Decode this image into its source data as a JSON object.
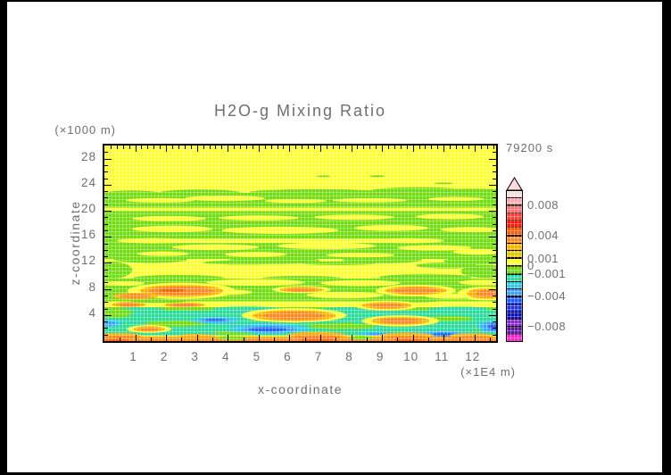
{
  "frame": {
    "background": "#000000",
    "canvas": "#ffffff"
  },
  "title": "H2O-g Mixing Ratio",
  "annotations": {
    "time": "79200 s",
    "z_axis_unit": "(×1000 m)",
    "x_axis_unit": "(×1E4 m)"
  },
  "chart_data": {
    "type": "filled_contour",
    "title": "H2O-g Mixing Ratio",
    "time": "79200 s",
    "xlabel": "x-coordinate",
    "ylabel": "z-coordinate",
    "x_unit": "(×1E4 m)",
    "z_unit": "(×1000 m)",
    "x_range": [
      0,
      12.7
    ],
    "z_range": [
      0,
      30
    ],
    "x_major_step": 1,
    "x_minor_step_top": 0.2,
    "x_minor_step_bottom": 0.5,
    "z_major_step": 4,
    "z_minor_step": 1,
    "x_tick_values": [
      1,
      2,
      3,
      4,
      5,
      6,
      7,
      8,
      9,
      10,
      11,
      12
    ],
    "x_tick_labels": [
      "1",
      "2",
      "3",
      "4",
      "5",
      "6",
      "7",
      "8",
      "9",
      "10",
      "11",
      "12"
    ],
    "z_tick_values": [
      4,
      8,
      12,
      16,
      20,
      24,
      28
    ],
    "z_tick_labels": [
      "4",
      "8",
      "12",
      "16",
      "20",
      "24",
      "28"
    ],
    "grid_mesh": true,
    "colorbar": {
      "min": -0.01,
      "max": 0.01,
      "step": 0.001,
      "colors_top_to_bottom": [
        "#FFDCDC",
        "#FFAAAA",
        "#FF7474",
        "#FF3A3A",
        "#FF1605",
        "#FF5A00",
        "#FC8620",
        "#FFAE00",
        "#E0CC00",
        "#FFFF2E",
        "#70DC10",
        "#29DA9B",
        "#2CC8E4",
        "#3D9EFF",
        "#1E5BFF",
        "#2030E8",
        "#0D0DBB",
        "#8A24CC",
        "#5F14A4",
        "#FF22CC"
      ],
      "labels": [
        {
          "value": 0.008,
          "text": "0.008"
        },
        {
          "value": 0.004,
          "text": "0.004"
        },
        {
          "value": 0.001,
          "text": "0.001"
        },
        {
          "value": 0,
          "text": "0"
        },
        {
          "value": -0.001,
          "text": "−0.001"
        },
        {
          "value": -0.004,
          "text": "−0.004"
        },
        {
          "value": -0.008,
          "text": "−0.008"
        }
      ]
    },
    "palette": {
      "yellow": "#FFFF2E",
      "green": "#70DC10",
      "teal": "#29DA9B",
      "cyan": "#2CC8E4",
      "sky": "#3D9EFF",
      "blue": "#1E5BFF",
      "dkyellow": "#E0CC00",
      "amber": "#FFAE00",
      "orange": "#FC8620",
      "redor": "#FF5A00"
    },
    "shapes": [
      [
        "r",
        "yellow",
        0,
        0,
        12.7,
        30
      ],
      [
        "r",
        "green",
        0,
        20.45,
        12.7,
        2.3
      ],
      [
        "e",
        "green",
        0.9,
        22.7,
        0.9,
        0.4
      ],
      [
        "e",
        "green",
        3.1,
        22.8,
        1.3,
        0.45
      ],
      [
        "e",
        "green",
        6.9,
        22.85,
        2.2,
        0.45
      ],
      [
        "e",
        "green",
        10.2,
        23.0,
        1.6,
        0.6
      ],
      [
        "e",
        "green",
        11.9,
        22.9,
        1.3,
        0.5
      ],
      [
        "e",
        "green",
        7.1,
        25.3,
        0.22,
        0.13
      ],
      [
        "e",
        "green",
        8.85,
        25.3,
        0.25,
        0.14
      ],
      [
        "e",
        "green",
        11.0,
        24.2,
        0.3,
        0.13
      ],
      [
        "e",
        "yellow",
        1.8,
        21.6,
        1.1,
        0.35
      ],
      [
        "e",
        "yellow",
        3.9,
        21.9,
        1.3,
        0.42
      ],
      [
        "e",
        "yellow",
        6.2,
        21.5,
        1.0,
        0.3
      ],
      [
        "e",
        "yellow",
        8.6,
        21.6,
        1.2,
        0.32
      ],
      [
        "e",
        "yellow",
        11.4,
        21.8,
        0.9,
        0.3
      ],
      [
        "r",
        "yellow",
        0,
        19.95,
        12.7,
        0.5
      ],
      [
        "r",
        "green",
        0,
        12.6,
        12.7,
        7.35
      ],
      [
        "e",
        "green",
        1.5,
        12.5,
        1.2,
        0.5
      ],
      [
        "e",
        "green",
        5.5,
        12.35,
        1.5,
        0.55
      ],
      [
        "e",
        "green",
        9.0,
        12.45,
        1.3,
        0.5
      ],
      [
        "e",
        "green",
        12.0,
        12.3,
        1.0,
        0.55
      ],
      [
        "e",
        "yellow",
        2.1,
        18.8,
        1.2,
        0.4
      ],
      [
        "e",
        "yellow",
        5.0,
        18.9,
        1.3,
        0.38
      ],
      [
        "e",
        "yellow",
        8.1,
        19.0,
        1.3,
        0.4
      ],
      [
        "e",
        "yellow",
        11.2,
        19.1,
        1.1,
        0.42
      ],
      [
        "e",
        "yellow",
        2.2,
        17.2,
        1.3,
        0.5
      ],
      [
        "e",
        "yellow",
        5.7,
        17.0,
        1.9,
        0.55
      ],
      [
        "e",
        "yellow",
        9.3,
        17.35,
        1.2,
        0.45
      ],
      [
        "e",
        "yellow",
        11.9,
        17.1,
        1.0,
        0.4
      ],
      [
        "r",
        "yellow",
        1.6,
        15.05,
        8.2,
        0.65
      ],
      [
        "e",
        "yellow",
        1.6,
        15.4,
        1.2,
        0.4
      ],
      [
        "e",
        "yellow",
        9.9,
        15.4,
        1.1,
        0.38
      ],
      [
        "e",
        "yellow",
        3.6,
        14.4,
        1.4,
        0.45
      ],
      [
        "e",
        "yellow",
        7.2,
        14.6,
        1.6,
        0.5
      ],
      [
        "e",
        "yellow",
        10.7,
        14.3,
        1.2,
        0.42
      ],
      [
        "e",
        "yellow",
        1.9,
        13.4,
        0.85,
        0.35
      ],
      [
        "e",
        "yellow",
        4.9,
        13.3,
        1.0,
        0.38
      ],
      [
        "e",
        "yellow",
        8.3,
        13.2,
        1.1,
        0.35
      ],
      [
        "e",
        "yellow",
        12.1,
        13.7,
        0.8,
        0.45
      ],
      [
        "e",
        "green",
        0.25,
        10.9,
        0.65,
        1.3
      ],
      [
        "e",
        "green",
        12.35,
        10.7,
        0.8,
        1.0
      ],
      [
        "e",
        "green",
        11.1,
        11.6,
        1.0,
        0.45
      ],
      [
        "e",
        "green",
        4.5,
        12.05,
        1.3,
        0.32
      ],
      [
        "e",
        "green",
        7.6,
        11.95,
        1.2,
        0.3
      ],
      [
        "r",
        "green",
        0,
        6.05,
        12.7,
        3.55
      ],
      [
        "e",
        "green",
        2.4,
        9.65,
        1.5,
        0.5
      ],
      [
        "e",
        "green",
        6.4,
        9.6,
        1.3,
        0.42
      ],
      [
        "e",
        "green",
        10.4,
        9.75,
        1.5,
        0.55
      ],
      [
        "e",
        "yellow",
        4.9,
        9.0,
        1.6,
        0.5
      ],
      [
        "e",
        "yellow",
        8.3,
        8.9,
        1.3,
        0.45
      ],
      [
        "e",
        "yellow",
        12.25,
        9.0,
        0.75,
        0.4
      ],
      [
        "e",
        "yellow",
        0.6,
        8.85,
        0.7,
        0.35
      ],
      [
        "e",
        "yellow",
        3.9,
        7.5,
        0.9,
        0.4
      ],
      [
        "e",
        "yellow",
        7.8,
        7.05,
        1.25,
        0.5
      ],
      [
        "e",
        "yellow",
        11.3,
        6.9,
        0.9,
        0.4
      ],
      [
        "r",
        "yellow",
        0,
        5.05,
        12.7,
        1.05
      ],
      [
        "e",
        "green",
        1.75,
        6.25,
        1.0,
        0.4
      ],
      [
        "e",
        "green",
        6.3,
        6.45,
        0.9,
        0.35
      ],
      [
        "e",
        "green",
        9.9,
        6.3,
        1.1,
        0.38
      ],
      [
        "r",
        "green",
        0,
        4.65,
        12.7,
        0.55
      ],
      [
        "r",
        "teal",
        0,
        0.85,
        12.7,
        3.85
      ],
      [
        "e",
        "teal",
        1.1,
        4.75,
        0.9,
        0.42
      ],
      [
        "e",
        "teal",
        4.6,
        4.85,
        1.1,
        0.5
      ],
      [
        "e",
        "teal",
        8.2,
        4.75,
        1.3,
        0.5
      ],
      [
        "e",
        "teal",
        11.5,
        4.85,
        1.0,
        0.45
      ],
      [
        "e",
        "green",
        0.35,
        4.3,
        0.55,
        0.75
      ],
      [
        "e",
        "green",
        2.3,
        2.7,
        1.0,
        0.45
      ],
      [
        "e",
        "green",
        7.7,
        2.3,
        1.1,
        0.5
      ],
      [
        "e",
        "green",
        11.15,
        3.45,
        0.8,
        0.42
      ],
      [
        "e",
        "green",
        12.45,
        2.1,
        0.45,
        0.85
      ],
      [
        "e",
        "green",
        4.2,
        1.2,
        0.7,
        0.32
      ],
      [
        "e",
        "cyan",
        5.3,
        1.9,
        1.35,
        0.75
      ],
      [
        "e",
        "cyan",
        3.6,
        3.2,
        0.8,
        0.48
      ],
      [
        "e",
        "cyan",
        10.8,
        1.1,
        1.05,
        0.5
      ],
      [
        "e",
        "cyan",
        8.8,
        1.15,
        0.55,
        0.33
      ],
      [
        "e",
        "cyan",
        12.5,
        2.2,
        0.45,
        0.9
      ],
      [
        "e",
        "cyan",
        0.2,
        2.7,
        0.35,
        0.55
      ],
      [
        "e",
        "sky",
        5.35,
        1.85,
        0.9,
        0.5
      ],
      [
        "e",
        "blue",
        5.3,
        1.8,
        0.62,
        0.32
      ],
      [
        "e",
        "sky",
        3.6,
        3.2,
        0.52,
        0.3
      ],
      [
        "e",
        "blue",
        3.6,
        3.2,
        0.33,
        0.19
      ],
      [
        "e",
        "sky",
        11.0,
        1.0,
        0.58,
        0.38
      ],
      [
        "e",
        "blue",
        11.0,
        0.98,
        0.36,
        0.24
      ],
      [
        "e",
        "sky",
        8.8,
        1.1,
        0.3,
        0.2
      ],
      [
        "e",
        "sky",
        12.55,
        2.2,
        0.3,
        0.7
      ],
      [
        "e",
        "blue",
        12.62,
        2.2,
        0.17,
        0.5
      ],
      [
        "e",
        "sky",
        0.15,
        2.7,
        0.2,
        0.35
      ],
      [
        "e",
        "yellow",
        2.5,
        7.7,
        1.75,
        1.25
      ],
      [
        "e",
        "amber",
        2.5,
        7.7,
        1.35,
        0.95
      ],
      [
        "e",
        "orange",
        2.5,
        7.7,
        1.05,
        0.68
      ],
      [
        "e",
        "redor",
        2.2,
        7.8,
        0.42,
        0.25
      ],
      [
        "e",
        "amber",
        1.0,
        6.9,
        0.75,
        0.5
      ],
      [
        "e",
        "orange",
        1.0,
        6.9,
        0.5,
        0.32
      ],
      [
        "e",
        "yellow",
        6.4,
        7.9,
        0.95,
        0.55
      ],
      [
        "e",
        "amber",
        6.4,
        7.9,
        0.72,
        0.4
      ],
      [
        "e",
        "orange",
        6.4,
        7.9,
        0.48,
        0.26
      ],
      [
        "e",
        "yellow",
        10.1,
        7.75,
        1.3,
        0.9
      ],
      [
        "e",
        "amber",
        10.1,
        7.75,
        1.0,
        0.65
      ],
      [
        "e",
        "orange",
        10.1,
        7.75,
        0.72,
        0.45
      ],
      [
        "e",
        "yellow",
        12.35,
        7.3,
        0.9,
        1.05
      ],
      [
        "e",
        "amber",
        12.4,
        7.3,
        0.65,
        0.8
      ],
      [
        "e",
        "orange",
        12.45,
        7.3,
        0.42,
        0.55
      ],
      [
        "e",
        "yellow",
        6.15,
        3.95,
        1.7,
        1.1
      ],
      [
        "e",
        "amber",
        6.15,
        3.9,
        1.35,
        0.85
      ],
      [
        "e",
        "orange",
        6.15,
        3.9,
        1.0,
        0.6
      ],
      [
        "e",
        "yellow",
        9.6,
        3.1,
        1.25,
        0.85
      ],
      [
        "e",
        "amber",
        9.6,
        3.1,
        0.95,
        0.62
      ],
      [
        "e",
        "orange",
        9.6,
        3.1,
        0.68,
        0.42
      ],
      [
        "e",
        "yellow",
        9.15,
        5.45,
        1.05,
        0.75
      ],
      [
        "e",
        "amber",
        9.15,
        5.45,
        0.8,
        0.55
      ],
      [
        "e",
        "orange",
        9.15,
        5.45,
        0.52,
        0.35
      ],
      [
        "e",
        "yellow",
        1.45,
        1.85,
        0.72,
        0.6
      ],
      [
        "e",
        "amber",
        1.45,
        1.85,
        0.52,
        0.42
      ],
      [
        "e",
        "orange",
        1.45,
        1.85,
        0.3,
        0.26
      ],
      [
        "e",
        "amber",
        2.6,
        5.55,
        0.65,
        0.4
      ],
      [
        "e",
        "orange",
        2.6,
        5.55,
        0.4,
        0.25
      ],
      [
        "e",
        "amber",
        0.8,
        5.6,
        0.55,
        0.42
      ],
      [
        "e",
        "orange",
        0.8,
        5.6,
        0.34,
        0.27
      ],
      [
        "r",
        "amber",
        0,
        0,
        12.7,
        0.72
      ],
      [
        "e",
        "amber",
        0.5,
        0.85,
        0.7,
        0.4
      ],
      [
        "e",
        "amber",
        3.0,
        0.8,
        0.6,
        0.3
      ],
      [
        "e",
        "amber",
        6.9,
        0.95,
        0.95,
        0.45
      ],
      [
        "e",
        "amber",
        9.8,
        0.9,
        0.85,
        0.4
      ],
      [
        "e",
        "amber",
        11.9,
        0.85,
        0.7,
        0.35
      ],
      [
        "r",
        "orange",
        0,
        0,
        12.7,
        0.45
      ],
      [
        "e",
        "orange",
        0.5,
        0.55,
        0.6,
        0.3
      ],
      [
        "e",
        "orange",
        6.9,
        0.6,
        0.8,
        0.35
      ],
      [
        "e",
        "orange",
        9.8,
        0.55,
        0.7,
        0.3
      ],
      [
        "e",
        "orange",
        11.9,
        0.5,
        0.6,
        0.28
      ],
      [
        "e",
        "redor",
        6.9,
        0.22,
        0.6,
        0.22
      ],
      [
        "e",
        "redor",
        0.4,
        0.18,
        0.4,
        0.18
      ],
      [
        "e",
        "redor",
        9.9,
        0.18,
        0.5,
        0.18
      ],
      [
        "e",
        "green",
        4.15,
        0.45,
        0.5,
        0.3
      ],
      [
        "e",
        "green",
        8.35,
        0.5,
        0.4,
        0.28
      ]
    ]
  }
}
